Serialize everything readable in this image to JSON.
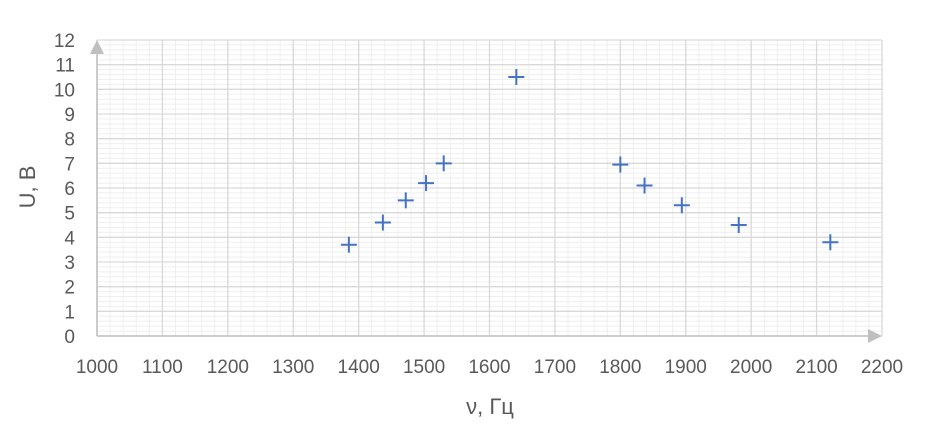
{
  "chart_data": {
    "type": "scatter",
    "xlabel": "ν, Гц",
    "ylabel": "U, В",
    "xlim": [
      1000,
      2200
    ],
    "ylim": [
      0,
      12
    ],
    "x_ticks": [
      1000,
      1100,
      1200,
      1300,
      1400,
      1500,
      1600,
      1700,
      1800,
      1900,
      2000,
      2100,
      2200
    ],
    "y_ticks": [
      0,
      1,
      2,
      3,
      4,
      5,
      6,
      7,
      8,
      9,
      10,
      11,
      12
    ],
    "grid": true,
    "minor_grid": true,
    "marker": "plus",
    "colors": {
      "marker": "#4472c4",
      "major_grid": "#d9d9d9",
      "minor_grid": "#efefef",
      "axis_arrow": "#bfbfbf"
    },
    "series": [
      {
        "points": [
          {
            "x": 1385,
            "y": 3.7
          },
          {
            "x": 1437,
            "y": 4.6
          },
          {
            "x": 1472,
            "y": 5.5
          },
          {
            "x": 1503,
            "y": 6.2
          },
          {
            "x": 1530,
            "y": 7.0
          },
          {
            "x": 1641,
            "y": 10.5
          },
          {
            "x": 1800,
            "y": 6.95
          },
          {
            "x": 1837,
            "y": 6.1
          },
          {
            "x": 1894,
            "y": 5.3
          },
          {
            "x": 1981,
            "y": 4.5
          },
          {
            "x": 2121,
            "y": 3.8
          }
        ]
      }
    ]
  }
}
